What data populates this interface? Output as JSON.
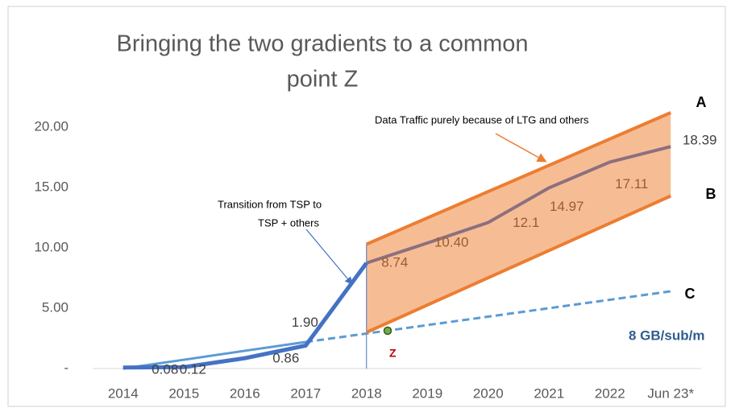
{
  "chart_data": {
    "type": "line",
    "title": [
      "Bringing the two gradients to a common",
      "point Z"
    ],
    "categories": [
      "2014",
      "2015",
      "2016",
      "2017",
      "2018",
      "2019",
      "2020",
      "2021",
      "2022",
      "Jun 23*"
    ],
    "ylim": [
      0,
      22
    ],
    "yticks": [
      {
        "value": 0,
        "label": "-"
      },
      {
        "value": 5,
        "label": "5.00"
      },
      {
        "value": 10,
        "label": "10.00"
      },
      {
        "value": 15,
        "label": "15.00"
      },
      {
        "value": 20,
        "label": "20.00"
      }
    ],
    "series": [
      {
        "name": "TSP",
        "color": "#4472c4",
        "values": [
          0.08,
          0.12,
          0.86,
          1.9,
          8.74,
          null,
          null,
          null,
          null,
          null
        ],
        "value_labels": [
          "0.08",
          "0.12",
          "0.86",
          "1.90",
          null,
          null,
          null,
          null,
          null,
          null
        ]
      },
      {
        "name": "TSP + others",
        "color": "#8e6f7e",
        "values": [
          null,
          null,
          null,
          null,
          8.74,
          10.4,
          12.1,
          14.97,
          17.11,
          18.39
        ],
        "value_labels": [
          null,
          null,
          null,
          null,
          "8.74",
          "10.40",
          "12.1",
          "14.97",
          "17.11",
          "18.39"
        ]
      },
      {
        "name": "A",
        "color": "#ed7d31",
        "values": [
          null,
          null,
          null,
          null,
          10.3,
          12.48,
          14.66,
          16.84,
          19.02,
          21.2
        ]
      },
      {
        "name": "B",
        "color": "#ed7d31",
        "values": [
          null,
          null,
          null,
          null,
          3.0,
          5.26,
          7.52,
          9.78,
          12.04,
          14.3
        ]
      },
      {
        "name": "C",
        "color": "#5b9bd5",
        "values": [
          0,
          0.73,
          1.47,
          2.2,
          2.9,
          3.6,
          4.3,
          5.0,
          5.7,
          6.4
        ]
      }
    ],
    "band_color": "#f4b183",
    "annotations": {
      "traffic": "Data Traffic purely because of LTG and others",
      "transition": [
        "Transition from TSP to",
        "TSP + others"
      ],
      "rate": "8 GB/sub/m",
      "point": "Z"
    }
  }
}
